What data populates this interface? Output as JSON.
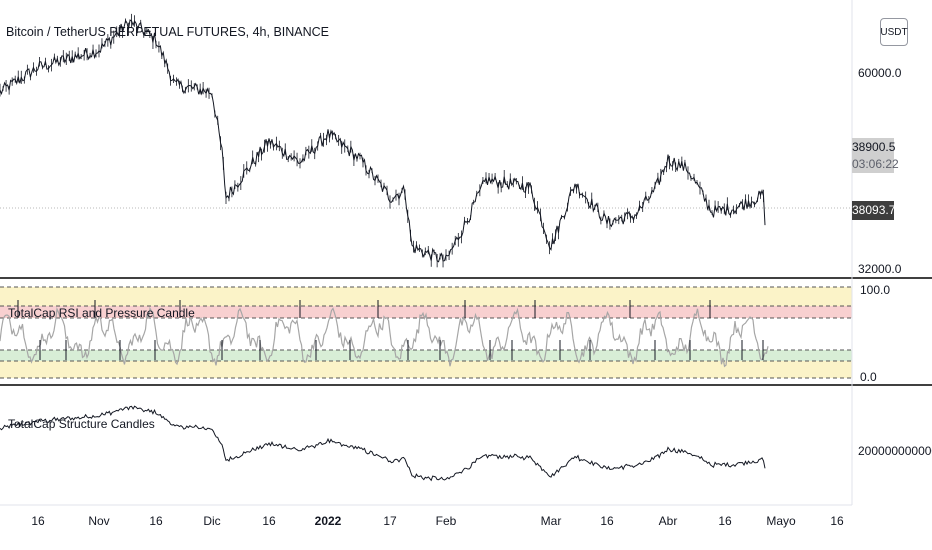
{
  "symbol_title": "Bitcoin / TetherUS PERPETUAL FUTURES, 4h, BINANCE",
  "currency_button": "USDT",
  "main_pane": {
    "price_labels": [
      "60000.0",
      "32000.0"
    ],
    "reference_price": "38900.5",
    "countdown": "03:06:22",
    "last_price": "38093.7"
  },
  "rsi_pane": {
    "title": "TotalCap RSI and Pressure Candle",
    "axis_labels": [
      "100.0",
      "0.0"
    ]
  },
  "structure_pane": {
    "title": "TotalCap Structure Candles",
    "axis_label": "2000000000000.0"
  },
  "time_axis": [
    {
      "label": "16",
      "bold": false
    },
    {
      "label": "Nov",
      "bold": false
    },
    {
      "label": "16",
      "bold": false
    },
    {
      "label": "Dic",
      "bold": false
    },
    {
      "label": "16",
      "bold": false
    },
    {
      "label": "2022",
      "bold": true
    },
    {
      "label": "17",
      "bold": false
    },
    {
      "label": "Feb",
      "bold": false
    },
    {
      "label": "Mar",
      "bold": false
    },
    {
      "label": "16",
      "bold": false
    },
    {
      "label": "Abr",
      "bold": false
    },
    {
      "label": "16",
      "bold": false
    },
    {
      "label": "Mayo",
      "bold": false
    },
    {
      "label": "16",
      "bold": false
    }
  ],
  "colors": {
    "candles": "#131722",
    "rsi_line": "#a6a6a6",
    "overbought_zone": "#f8d0d0",
    "upper_neutral_zone": "#fbf3c8",
    "lower_neutral_zone": "#fbf3c8",
    "oversold_zone": "#d8eed6",
    "pane_divider": "#000000"
  },
  "chart_data": {
    "type": "line",
    "price_series": [
      {
        "x": "Oct",
        "y": 57000
      },
      {
        "x": "16 Oct",
        "y": 60500
      },
      {
        "x": "Nov",
        "y": 63000
      },
      {
        "x": "10 Nov",
        "y": 67000
      },
      {
        "x": "16 Nov",
        "y": 64500
      },
      {
        "x": "20 Nov",
        "y": 58000
      },
      {
        "x": "Dic",
        "y": 57000
      },
      {
        "x": "4 Dic",
        "y": 48500
      },
      {
        "x": "4 Dic",
        "y": 42000
      },
      {
        "x": "8 Dic",
        "y": 50000
      },
      {
        "x": "16 Dic",
        "y": 47000
      },
      {
        "x": "27 Dic",
        "y": 51000
      },
      {
        "x": "2022",
        "y": 47500
      },
      {
        "x": "10 Ene",
        "y": 42000
      },
      {
        "x": "17 Ene",
        "y": 43000
      },
      {
        "x": "22 Ene",
        "y": 35000
      },
      {
        "x": "24 Ene",
        "y": 33000
      },
      {
        "x": "Feb",
        "y": 38500
      },
      {
        "x": "10 Feb",
        "y": 44500
      },
      {
        "x": "16 Feb",
        "y": 43500
      },
      {
        "x": "24 Feb",
        "y": 35000
      },
      {
        "x": "Mar",
        "y": 44000
      },
      {
        "x": "7 Mar",
        "y": 38500
      },
      {
        "x": "16 Mar",
        "y": 39500
      },
      {
        "x": "23 Mar",
        "y": 43000
      },
      {
        "x": "Abr",
        "y": 47500
      },
      {
        "x": "6 Abr",
        "y": 46000
      },
      {
        "x": "11 Abr",
        "y": 40000
      },
      {
        "x": "16 Abr",
        "y": 40500
      },
      {
        "x": "21 Abr",
        "y": 42500
      },
      {
        "x": "25 Abr",
        "y": 38093.7
      }
    ],
    "rsi_levels": [
      30,
      70
    ],
    "ylim_price": [
      32000,
      70000
    ],
    "ylim_rsi": [
      0,
      100
    ]
  }
}
